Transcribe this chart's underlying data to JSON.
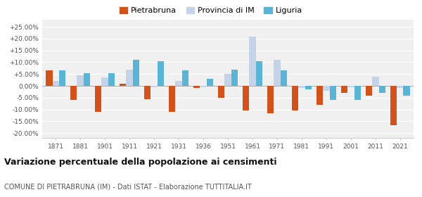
{
  "years": [
    1871,
    1881,
    1901,
    1911,
    1921,
    1931,
    1936,
    1951,
    1961,
    1971,
    1981,
    1991,
    2001,
    2011,
    2021
  ],
  "pietrabruna": [
    6.5,
    -6.0,
    -11.0,
    1.0,
    -5.5,
    -11.0,
    -1.0,
    -5.0,
    -10.5,
    -11.5,
    -10.5,
    -8.0,
    -3.0,
    -4.0,
    -16.5
  ],
  "provincia_im": [
    2.0,
    4.5,
    3.5,
    7.0,
    -0.5,
    2.0,
    -0.5,
    5.0,
    21.0,
    11.0,
    -1.0,
    -2.0,
    -0.5,
    4.0,
    -1.0
  ],
  "liguria": [
    6.5,
    5.5,
    5.5,
    11.0,
    10.5,
    6.5,
    3.0,
    7.0,
    10.5,
    6.5,
    -1.5,
    -6.0,
    -6.0,
    -3.0,
    -4.0
  ],
  "color_pietrabruna": "#d2521c",
  "color_provincia": "#c5d3e8",
  "color_liguria": "#5ab4d6",
  "title": "Variazione percentuale della popolazione ai censimenti",
  "subtitle": "COMUNE DI PIETRABRUNA (IM) - Dati ISTAT - Elaborazione TUTTITALIA.IT",
  "ylim": [
    -22,
    28
  ],
  "yticks": [
    -20,
    -15,
    -10,
    -5,
    0,
    5,
    10,
    15,
    20,
    25
  ],
  "ytick_labels": [
    "-20.00%",
    "-15.00%",
    "-10.00%",
    "-5.00%",
    "0.00%",
    "+5.00%",
    "+10.00%",
    "+15.00%",
    "+20.00%",
    "+25.00%"
  ],
  "legend_labels": [
    "Pietrabruna",
    "Provincia di IM",
    "Liguria"
  ],
  "plot_bg_color": "#f0f0f0",
  "bar_width": 0.27,
  "legend_marker_size": 12
}
